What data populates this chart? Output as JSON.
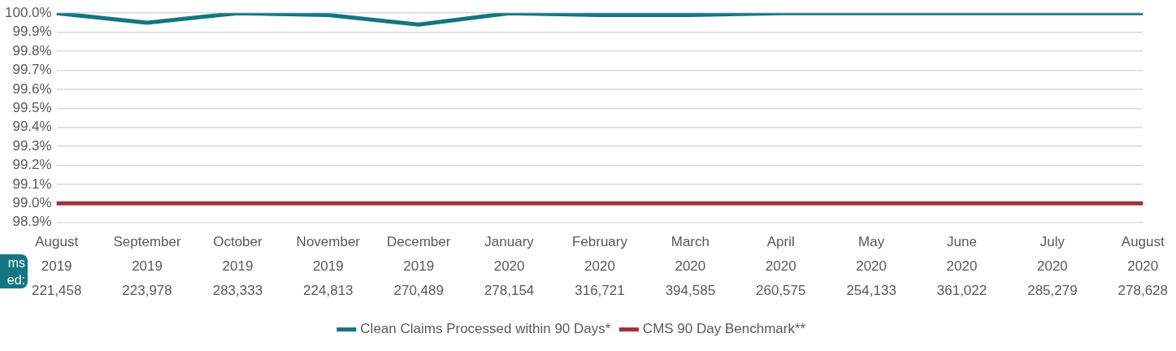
{
  "chart_data": {
    "type": "line",
    "categories": [
      "August\n2019\n221,458",
      "September\n2019\n223,978",
      "October\n2019\n283,333",
      "November\n2019\n224,813",
      "December\n2019\n270,489",
      "January\n2020\n278,154",
      "February\n2020\n316,721",
      "March\n2020\n394,585",
      "April\n2020\n260,575",
      "May\n2020\n254,133",
      "June\n2020\n361,022",
      "July\n2020\n285,279",
      "August\n2020\n278,628"
    ],
    "series": [
      {
        "name": "Clean Claims Processed within 90 Days*",
        "color": "#137682",
        "values": [
          100.0,
          99.95,
          100.0,
          99.99,
          99.94,
          100.0,
          99.99,
          99.99,
          100.0,
          100.0,
          100.0,
          100.0,
          100.0
        ]
      },
      {
        "name": "CMS 90 Day Benchmark**",
        "color": "#a33234",
        "values": [
          99.0,
          99.0,
          99.0,
          99.0,
          99.0,
          99.0,
          99.0,
          99.0,
          99.0,
          99.0,
          99.0,
          99.0,
          99.0
        ]
      }
    ],
    "ylim": [
      98.9,
      100.0
    ],
    "yticks": [
      {
        "value": 98.9,
        "label": "98.9%"
      },
      {
        "value": 99.0,
        "label": "99.0%"
      },
      {
        "value": 99.1,
        "label": "99.1%"
      },
      {
        "value": 99.2,
        "label": "99.2%"
      },
      {
        "value": 99.3,
        "label": "99.3%"
      },
      {
        "value": 99.4,
        "label": "99.4%"
      },
      {
        "value": 99.5,
        "label": "99.5%"
      },
      {
        "value": 99.6,
        "label": "99.6%"
      },
      {
        "value": 99.7,
        "label": "99.7%"
      },
      {
        "value": 99.8,
        "label": "99.8%"
      },
      {
        "value": 99.9,
        "label": "99.9%"
      },
      {
        "value": 100.0,
        "label": "100.0%"
      }
    ],
    "grid": "y",
    "legend": "bottom",
    "marker": "none",
    "line_style": "solid",
    "annotations": [
      "ms\ned:"
    ]
  }
}
